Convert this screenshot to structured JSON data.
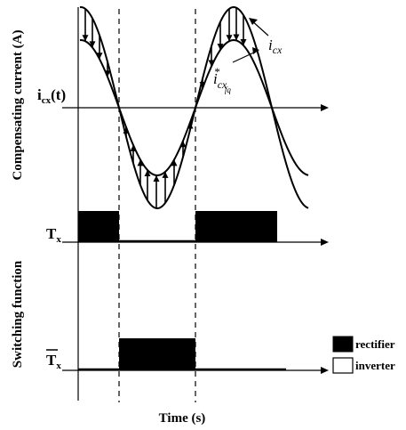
{
  "diagram": {
    "y_label_top": "Compensating current (A)",
    "y_label_bottom": "Switching function",
    "x_label": "Time (s)",
    "axis_current_label_main": "i",
    "axis_current_label_sub": "cx",
    "axis_current_label_tail": "(t)",
    "axis_tx_label_main": "T",
    "axis_tx_label_sub": "x",
    "axis_txbar_label_main": "T",
    "axis_txbar_label_sub": "x",
    "curve_label_1_main": "i",
    "curve_label_1_sub": "cx",
    "curve_label_2_main": "i",
    "curve_label_2_sub": "cx",
    "curve_label_2_sup": "*",
    "curve_label_2_subsub": "fq"
  },
  "legend": [
    {
      "label": "rectifier",
      "fill": "#000000"
    },
    {
      "label": "inverter",
      "fill": "#ffffff"
    }
  ],
  "colors": {
    "ink": "#000000",
    "paper": "#ffffff"
  }
}
